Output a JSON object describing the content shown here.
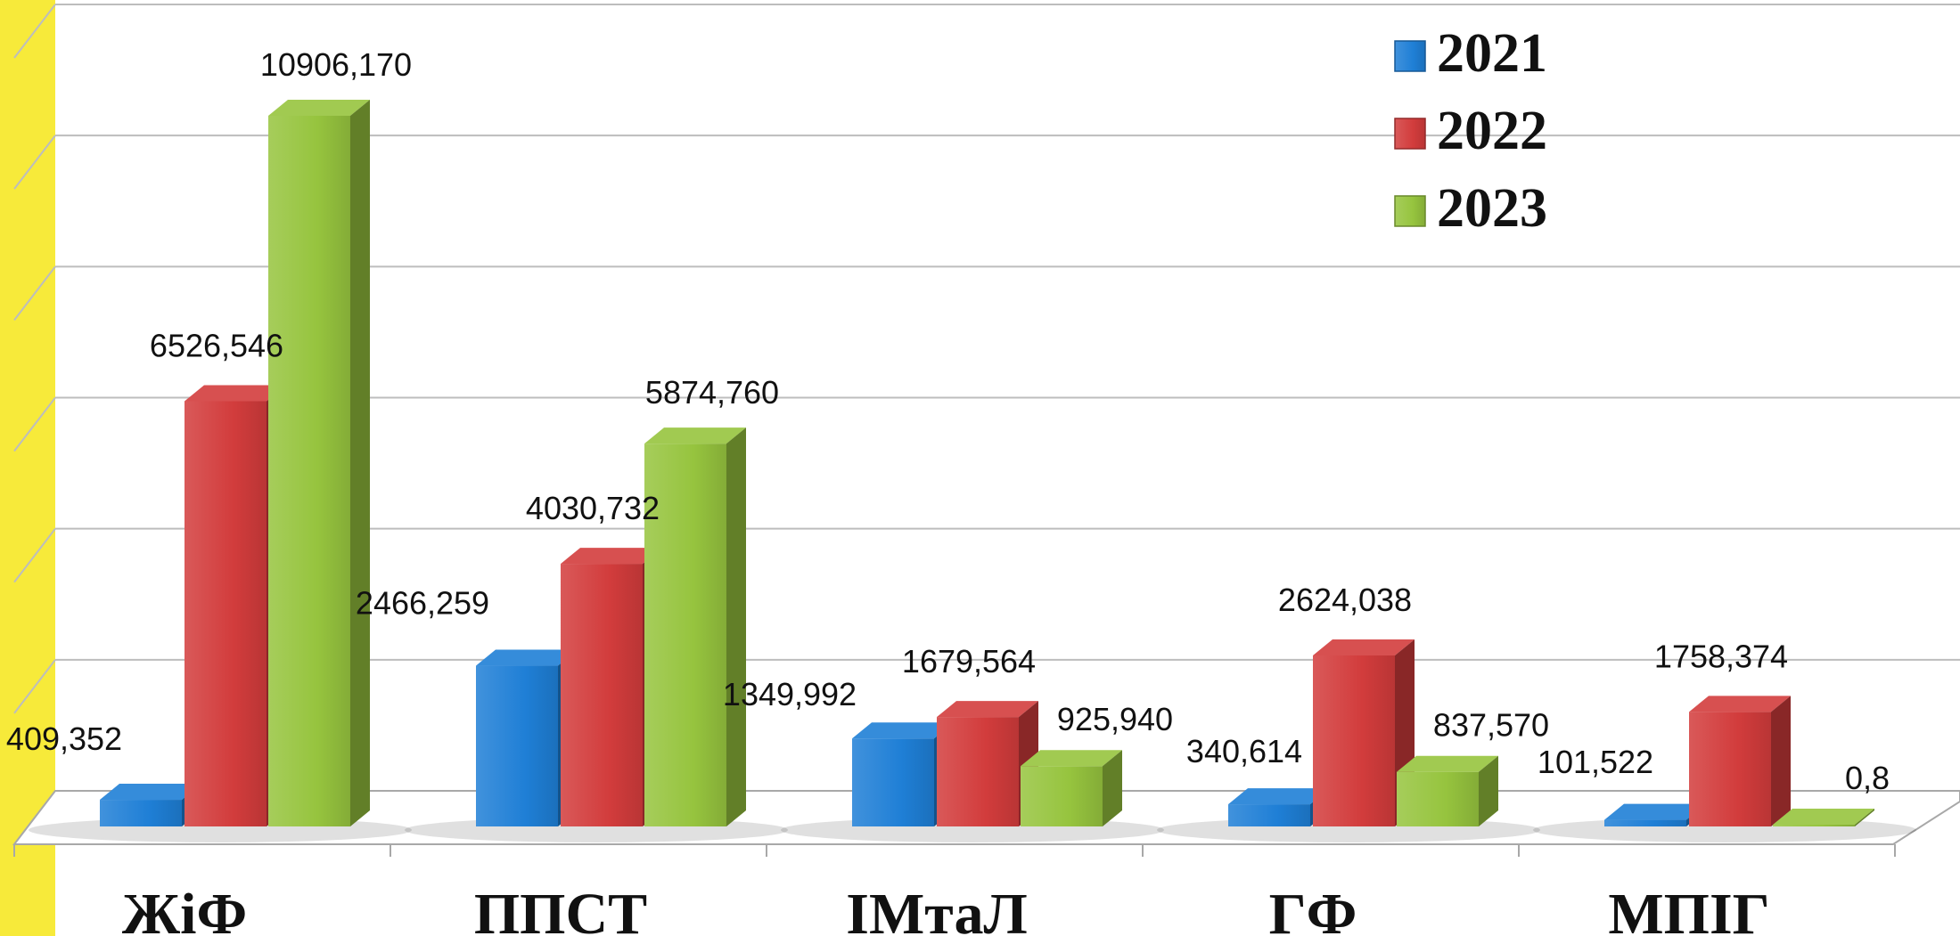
{
  "colors": {
    "stripe": "#f7ea3a",
    "gridline": "#bdbdbd",
    "floor": "#a8a8a8"
  },
  "chart_data": {
    "type": "bar",
    "title": "",
    "xlabel": "",
    "ylabel": "",
    "ylim": [
      0,
      12000
    ],
    "grid": true,
    "legend_position": "top-right",
    "categories": [
      "ЖіФ",
      "ППСТ",
      "ІМтаЛ",
      "ГФ",
      "МПІГ"
    ],
    "series": [
      {
        "name": "2021",
        "color": "#1f7fd6",
        "values": [
          409.352,
          2466.259,
          1349.992,
          340.614,
          101.522
        ],
        "labels": [
          "409,352",
          "2466,259",
          "1349,992",
          "340,614",
          "101,522"
        ]
      },
      {
        "name": "2022",
        "color": "#d23c3c",
        "values": [
          6526.546,
          4030.732,
          1679.564,
          2624.038,
          1758.374
        ],
        "labels": [
          "6526,546",
          "4030,732",
          "1679,564",
          "2624,038",
          "1758,374"
        ]
      },
      {
        "name": "2023",
        "color": "#96c43e",
        "values": [
          10906.17,
          5874.76,
          925.94,
          837.57,
          0.8
        ],
        "labels": [
          "10906,170",
          "5874,760",
          "925,940",
          "837,570",
          "0,8"
        ]
      }
    ]
  }
}
